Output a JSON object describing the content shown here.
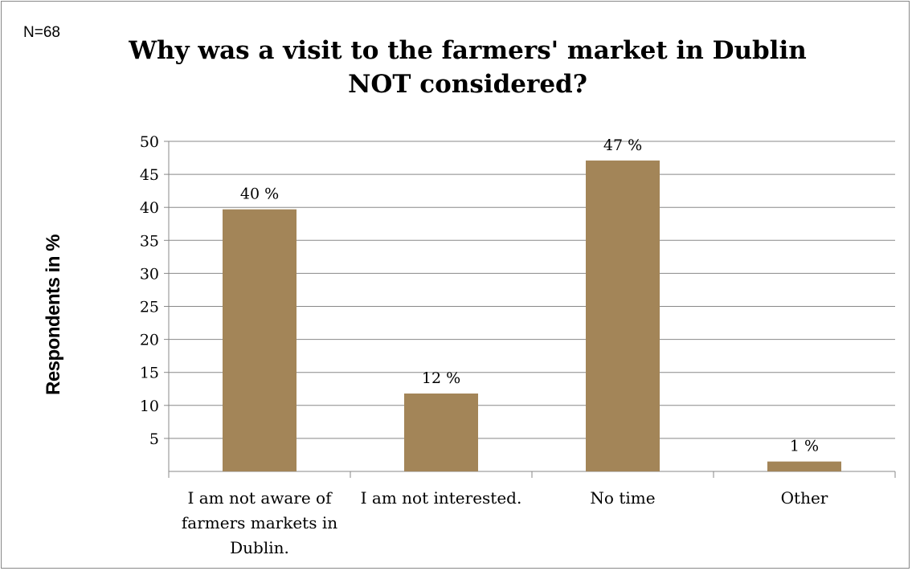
{
  "sample_note": "N=68",
  "chart_data": {
    "type": "bar",
    "title": "Why was a visit to the farmers' market in Dublin NOT considered?",
    "title_lines": [
      "Why was a visit to the farmers' market in Dublin",
      "NOT considered?"
    ],
    "ylabel": "Respondents in %",
    "xlabel": "",
    "categories": [
      "I am not aware of farmers markets in Dublin.",
      "I am not interested.",
      "No time",
      "Other"
    ],
    "category_lines": [
      [
        "I am not aware of",
        "farmers markets in",
        "Dublin."
      ],
      [
        "I am not interested."
      ],
      [
        "No time"
      ],
      [
        "Other"
      ]
    ],
    "values": [
      39.7,
      11.8,
      47.1,
      1.5
    ],
    "data_labels": [
      "40 %",
      "12 %",
      "47 %",
      "1 %"
    ],
    "ylim": [
      0,
      50
    ],
    "yticks": [
      5,
      10,
      15,
      20,
      25,
      30,
      35,
      40,
      45,
      50
    ],
    "ytick_labels": [
      "5",
      "10",
      "15",
      "20",
      "25",
      "30",
      "35",
      "40",
      "45",
      "50"
    ],
    "grid": true,
    "bar_color": "#a38558",
    "grid_color": "#888888"
  }
}
